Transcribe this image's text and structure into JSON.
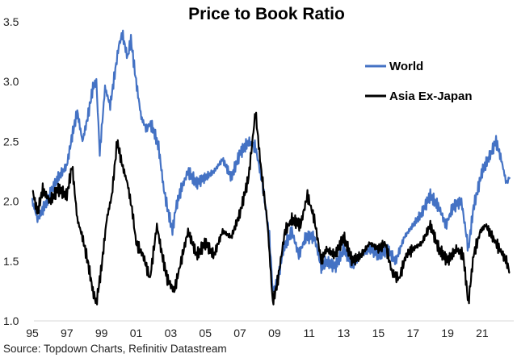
{
  "chart_data": {
    "type": "line",
    "title": "Price to Book Ratio",
    "source": "Source: Topdown Charts, Refinitiv Datastream",
    "xlabel": "",
    "ylabel": "",
    "ylim": [
      1.0,
      3.5
    ],
    "xlim": [
      1995,
      2022.8
    ],
    "yticks": [
      "1.0",
      "1.5",
      "2.0",
      "2.5",
      "3.0",
      "3.5"
    ],
    "xticks": [
      "95",
      "97",
      "99",
      "01",
      "03",
      "05",
      "07",
      "09",
      "11",
      "13",
      "15",
      "17",
      "19",
      "21"
    ],
    "grid": false,
    "legend_position": "right",
    "series": [
      {
        "name": "World",
        "color": "#4472C4",
        "x": [
          1995.0,
          1995.3,
          1995.5,
          1996.0,
          1996.5,
          1997.0,
          1997.3,
          1997.6,
          1997.9,
          1998.2,
          1998.5,
          1998.7,
          1998.9,
          1999.2,
          1999.5,
          1999.8,
          2000.0,
          2000.2,
          2000.5,
          2000.7,
          2001.0,
          2001.3,
          2001.6,
          2001.8,
          2002.0,
          2002.3,
          2002.6,
          2002.8,
          2003.1,
          2003.3,
          2003.6,
          2004.0,
          2004.5,
          2005.0,
          2005.5,
          2006.0,
          2006.5,
          2007.0,
          2007.5,
          2007.9,
          2008.3,
          2008.7,
          2008.9,
          2009.2,
          2009.5,
          2010.0,
          2010.4,
          2010.8,
          2011.3,
          2011.7,
          2012.0,
          2012.5,
          2013.0,
          2013.5,
          2014.0,
          2014.5,
          2015.0,
          2015.5,
          2016.0,
          2016.5,
          2017.0,
          2017.5,
          2018.0,
          2018.5,
          2018.9,
          2019.3,
          2019.8,
          2020.2,
          2020.5,
          2021.0,
          2021.5,
          2021.8,
          2022.1,
          2022.4,
          2022.6
        ],
        "values": [
          2.0,
          1.85,
          1.9,
          2.05,
          2.2,
          2.3,
          2.55,
          2.75,
          2.5,
          2.7,
          2.95,
          3.0,
          2.4,
          2.95,
          2.8,
          3.1,
          3.3,
          3.4,
          3.2,
          3.35,
          3.0,
          2.7,
          2.6,
          2.65,
          2.6,
          2.45,
          2.1,
          1.95,
          1.75,
          1.95,
          2.1,
          2.25,
          2.15,
          2.2,
          2.25,
          2.35,
          2.2,
          2.4,
          2.5,
          2.45,
          2.15,
          1.7,
          1.25,
          1.35,
          1.6,
          1.75,
          1.55,
          1.7,
          1.7,
          1.45,
          1.5,
          1.45,
          1.6,
          1.45,
          1.55,
          1.6,
          1.55,
          1.6,
          1.5,
          1.7,
          1.8,
          1.9,
          2.05,
          1.95,
          1.8,
          1.95,
          2.0,
          1.6,
          1.95,
          2.25,
          2.4,
          2.5,
          2.35,
          2.15,
          2.2
        ]
      },
      {
        "name": "Asia Ex-Japan",
        "color": "#000000",
        "x": [
          1995.0,
          1995.3,
          1995.6,
          1996.0,
          1996.5,
          1997.0,
          1997.3,
          1997.6,
          1997.9,
          1998.2,
          1998.5,
          1998.7,
          1999.0,
          1999.3,
          1999.6,
          1999.9,
          2000.2,
          2000.5,
          2000.8,
          2001.0,
          2001.4,
          2001.8,
          2002.2,
          2002.5,
          2002.8,
          2003.2,
          2003.6,
          2004.0,
          2004.5,
          2005.0,
          2005.5,
          2006.0,
          2006.5,
          2007.0,
          2007.5,
          2007.9,
          2008.2,
          2008.6,
          2008.9,
          2009.2,
          2009.6,
          2010.0,
          2010.5,
          2010.9,
          2011.3,
          2011.7,
          2012.0,
          2012.5,
          2013.0,
          2013.5,
          2014.0,
          2014.5,
          2015.0,
          2015.4,
          2015.8,
          2016.2,
          2016.6,
          2017.0,
          2017.5,
          2018.0,
          2018.5,
          2019.0,
          2019.5,
          2019.9,
          2020.2,
          2020.5,
          2020.9,
          2021.2,
          2021.6,
          2022.0,
          2022.4,
          2022.6
        ],
        "values": [
          2.1,
          1.9,
          2.1,
          2.0,
          2.1,
          2.05,
          2.3,
          1.85,
          1.7,
          1.5,
          1.25,
          1.15,
          1.45,
          1.85,
          2.05,
          2.5,
          2.3,
          2.15,
          1.9,
          1.65,
          1.55,
          1.35,
          1.8,
          1.55,
          1.35,
          1.25,
          1.5,
          1.75,
          1.55,
          1.65,
          1.55,
          1.75,
          1.7,
          1.9,
          2.2,
          2.75,
          2.3,
          1.8,
          1.15,
          1.35,
          1.75,
          1.85,
          1.8,
          2.05,
          1.85,
          1.5,
          1.6,
          1.55,
          1.7,
          1.5,
          1.55,
          1.65,
          1.6,
          1.65,
          1.4,
          1.35,
          1.55,
          1.6,
          1.65,
          1.8,
          1.6,
          1.5,
          1.6,
          1.55,
          1.15,
          1.55,
          1.75,
          1.8,
          1.7,
          1.6,
          1.5,
          1.4
        ]
      }
    ]
  }
}
